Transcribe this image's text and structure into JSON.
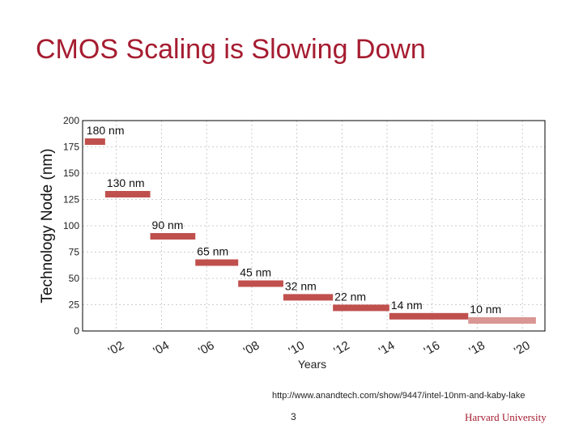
{
  "slide": {
    "title": "CMOS Scaling is Slowing Down",
    "source": "http://www.anandtech.com/show/9447/intel-10nm-and-kaby-lake",
    "page_number": "3",
    "brand": "Harvard University"
  },
  "colors": {
    "title": "#a51c30",
    "bar": "#c0504d",
    "bar_highlight": "#d99694",
    "grid": "#bfbfbf"
  },
  "chart_data": {
    "type": "bar",
    "orientation": "horizontal-span",
    "xlabel": "Years",
    "ylabel": "Technology Node (nm)",
    "xlim": [
      2000.5,
      2021
    ],
    "ylim": [
      0,
      200
    ],
    "xticks": [
      2002,
      2004,
      2006,
      2008,
      2010,
      2012,
      2014,
      2016,
      2018,
      2020
    ],
    "xtick_labels": [
      "'02",
      "'04",
      "'06",
      "'08",
      "'10",
      "'12",
      "'14",
      "'16",
      "'18",
      "'20"
    ],
    "yticks": [
      0,
      25,
      50,
      75,
      100,
      125,
      150,
      175,
      200
    ],
    "ytick_labels": [
      "0",
      "25",
      "50",
      "75",
      "100",
      "125",
      "150",
      "175",
      "200"
    ],
    "grid": true,
    "nodes": [
      {
        "label": "180 nm",
        "value": 180,
        "start": 2000.6,
        "end": 2001.5,
        "highlight": false
      },
      {
        "label": "130 nm",
        "value": 130,
        "start": 2001.5,
        "end": 2003.5,
        "highlight": false
      },
      {
        "label": "90 nm",
        "value": 90,
        "start": 2003.5,
        "end": 2005.5,
        "highlight": false
      },
      {
        "label": "65 nm",
        "value": 65,
        "start": 2005.5,
        "end": 2007.4,
        "highlight": false
      },
      {
        "label": "45 nm",
        "value": 45,
        "start": 2007.4,
        "end": 2009.4,
        "highlight": false
      },
      {
        "label": "32 nm",
        "value": 32,
        "start": 2009.4,
        "end": 2011.6,
        "highlight": false
      },
      {
        "label": "22 nm",
        "value": 22,
        "start": 2011.6,
        "end": 2014.1,
        "highlight": false
      },
      {
        "label": "14 nm",
        "value": 14,
        "start": 2014.1,
        "end": 2017.6,
        "highlight": false
      },
      {
        "label": "10 nm",
        "value": 10,
        "start": 2017.6,
        "end": 2020.6,
        "highlight": true
      }
    ]
  }
}
